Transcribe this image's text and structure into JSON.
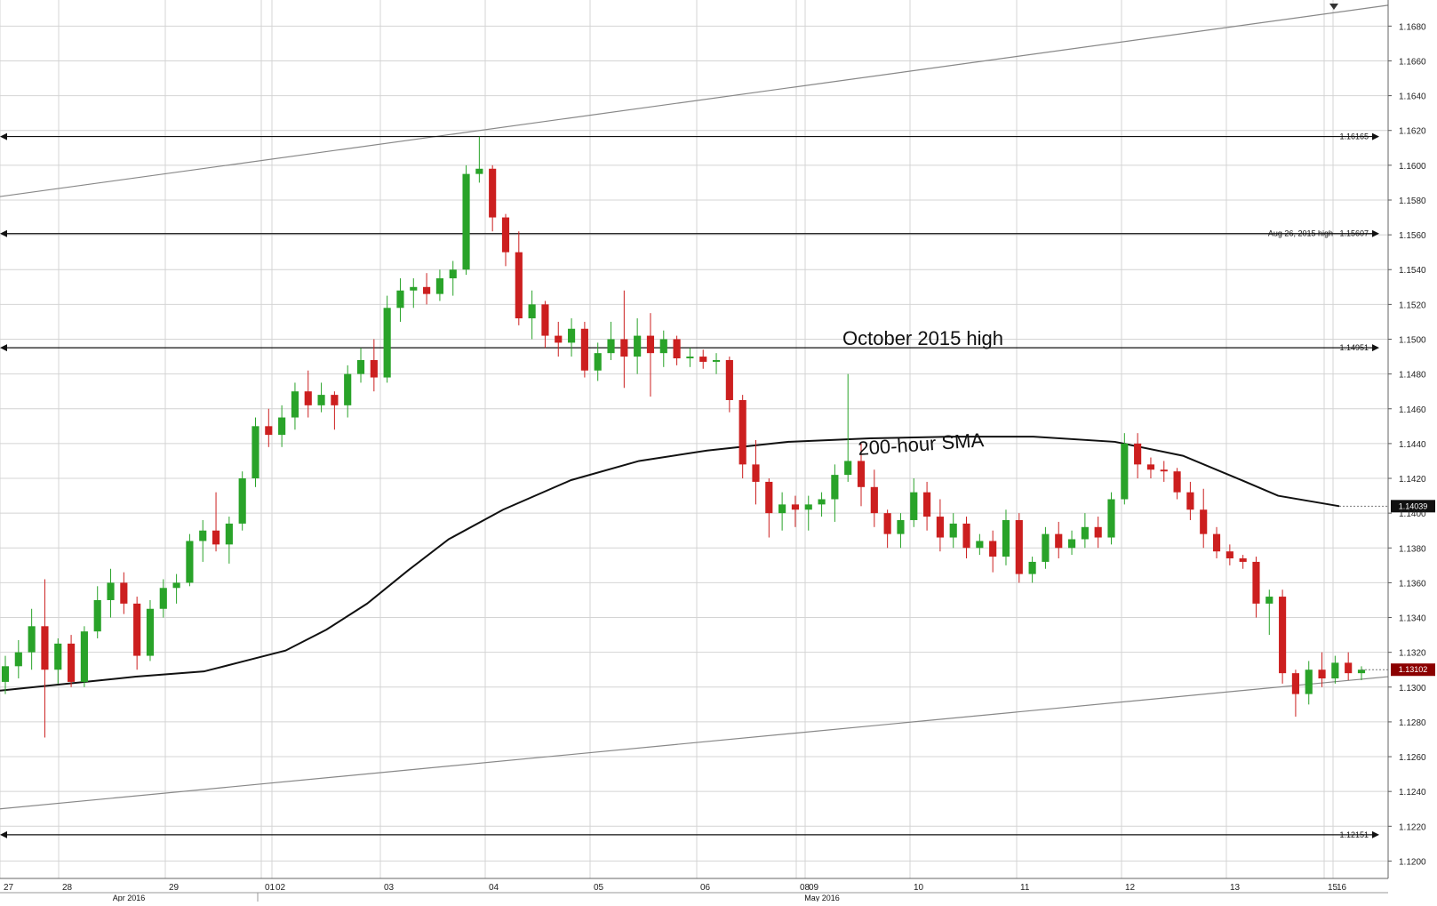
{
  "chart_data": {
    "type": "candlestick",
    "instrument_note": "",
    "ylim": [
      1.119,
      1.1695
    ],
    "y_ticks": [
      "1.1680",
      "1.1660",
      "1.1640",
      "1.1620",
      "1.1600",
      "1.1580",
      "1.1560",
      "1.1540",
      "1.1520",
      "1.1500",
      "1.1480",
      "1.1460",
      "1.1440",
      "1.1420",
      "1.1400",
      "1.1380",
      "1.1360",
      "1.1340",
      "1.1320",
      "1.1300",
      "1.1280",
      "1.1260",
      "1.1240",
      "1.1220",
      "1.1200"
    ],
    "x_date_labels": [
      "27",
      "28",
      "29",
      "01",
      "02",
      "03",
      "04",
      "05",
      "06",
      "08",
      "09",
      "10",
      "11",
      "12",
      "13",
      "15",
      "16"
    ],
    "x_month_labels": [
      "Apr 2016",
      "May 2016"
    ],
    "horizontal_levels": [
      {
        "label": "",
        "value_text": "1.16165",
        "value": 1.16165
      },
      {
        "label": "Aug 26, 2015 high",
        "value_text": "1.15607",
        "value": 1.15607
      },
      {
        "label": "October 2015 high",
        "value_text": "1.14951",
        "value": 1.14951
      },
      {
        "label": "",
        "value_text": "1.12151",
        "value": 1.12151
      }
    ],
    "trendlines": [
      {
        "from": [
          0,
          1.1582
        ],
        "to": [
          1.0,
          1.1692
        ]
      },
      {
        "from": [
          0,
          1.123
        ],
        "to": [
          1.0,
          1.1306
        ]
      }
    ],
    "sma_label": "200-hour SMA",
    "sma_value_text": "1.14039",
    "last_price_text": "1.13102",
    "sma_points": [
      [
        0,
        1.1298
      ],
      [
        0.05,
        1.1302
      ],
      [
        0.1,
        1.1306
      ],
      [
        0.15,
        1.1309
      ],
      [
        0.18,
        1.1315
      ],
      [
        0.21,
        1.1321
      ],
      [
        0.24,
        1.1333
      ],
      [
        0.27,
        1.1348
      ],
      [
        0.3,
        1.1367
      ],
      [
        0.33,
        1.1385
      ],
      [
        0.37,
        1.1402
      ],
      [
        0.42,
        1.1419
      ],
      [
        0.47,
        1.143
      ],
      [
        0.52,
        1.1436
      ],
      [
        0.58,
        1.1441
      ],
      [
        0.64,
        1.1443
      ],
      [
        0.7,
        1.1444
      ],
      [
        0.76,
        1.1444
      ],
      [
        0.82,
        1.1441
      ],
      [
        0.87,
        1.1433
      ],
      [
        0.91,
        1.142
      ],
      [
        0.94,
        1.141
      ],
      [
        0.985,
        1.1404
      ]
    ],
    "candles_ohlc": [
      [
        1.1303,
        1.1318,
        1.1296,
        1.1312
      ],
      [
        1.1312,
        1.1327,
        1.1305,
        1.132
      ],
      [
        1.132,
        1.1345,
        1.131,
        1.1335
      ],
      [
        1.1335,
        1.1362,
        1.1271,
        1.131
      ],
      [
        1.131,
        1.1328,
        1.1302,
        1.1325
      ],
      [
        1.1325,
        1.133,
        1.13,
        1.1303
      ],
      [
        1.1303,
        1.1335,
        1.13,
        1.1332
      ],
      [
        1.1332,
        1.1358,
        1.1328,
        1.135
      ],
      [
        1.135,
        1.1368,
        1.134,
        1.136
      ],
      [
        1.136,
        1.1366,
        1.1342,
        1.1348
      ],
      [
        1.1348,
        1.1352,
        1.131,
        1.1318
      ],
      [
        1.1318,
        1.135,
        1.1315,
        1.1345
      ],
      [
        1.1345,
        1.1362,
        1.134,
        1.1357
      ],
      [
        1.1357,
        1.1365,
        1.1348,
        1.136
      ],
      [
        1.136,
        1.1388,
        1.1358,
        1.1384
      ],
      [
        1.1384,
        1.1396,
        1.1372,
        1.139
      ],
      [
        1.139,
        1.1412,
        1.1378,
        1.1382
      ],
      [
        1.1382,
        1.1398,
        1.1371,
        1.1394
      ],
      [
        1.1394,
        1.1424,
        1.139,
        1.142
      ],
      [
        1.142,
        1.1455,
        1.1415,
        1.145
      ],
      [
        1.145,
        1.146,
        1.1438,
        1.1445
      ],
      [
        1.1445,
        1.1462,
        1.1438,
        1.1455
      ],
      [
        1.1455,
        1.1475,
        1.1448,
        1.147
      ],
      [
        1.147,
        1.1482,
        1.1455,
        1.1462
      ],
      [
        1.1462,
        1.1475,
        1.1458,
        1.1468
      ],
      [
        1.1468,
        1.147,
        1.1448,
        1.1462
      ],
      [
        1.1462,
        1.1485,
        1.1455,
        1.148
      ],
      [
        1.148,
        1.1495,
        1.1475,
        1.1488
      ],
      [
        1.1488,
        1.15,
        1.147,
        1.1478
      ],
      [
        1.1478,
        1.1525,
        1.1475,
        1.1518
      ],
      [
        1.1518,
        1.1535,
        1.151,
        1.1528
      ],
      [
        1.1528,
        1.1535,
        1.1518,
        1.153
      ],
      [
        1.153,
        1.1538,
        1.152,
        1.1526
      ],
      [
        1.1526,
        1.154,
        1.1522,
        1.1535
      ],
      [
        1.1535,
        1.1545,
        1.1525,
        1.154
      ],
      [
        1.154,
        1.16,
        1.1537,
        1.1595
      ],
      [
        1.1595,
        1.16165,
        1.159,
        1.1598
      ],
      [
        1.1598,
        1.16,
        1.1562,
        1.157
      ],
      [
        1.157,
        1.1572,
        1.1542,
        1.155
      ],
      [
        1.155,
        1.1562,
        1.1508,
        1.1512
      ],
      [
        1.1512,
        1.1528,
        1.15,
        1.152
      ],
      [
        1.152,
        1.1522,
        1.1495,
        1.1502
      ],
      [
        1.1502,
        1.151,
        1.149,
        1.1498
      ],
      [
        1.1498,
        1.1512,
        1.149,
        1.1506
      ],
      [
        1.1506,
        1.151,
        1.1478,
        1.1482
      ],
      [
        1.1482,
        1.1498,
        1.1476,
        1.1492
      ],
      [
        1.1492,
        1.151,
        1.1488,
        1.15
      ],
      [
        1.15,
        1.1528,
        1.1472,
        1.149
      ],
      [
        1.149,
        1.1512,
        1.148,
        1.1502
      ],
      [
        1.1502,
        1.1515,
        1.1467,
        1.1492
      ],
      [
        1.1492,
        1.1505,
        1.1484,
        1.15
      ],
      [
        1.15,
        1.1502,
        1.1485,
        1.1489
      ],
      [
        1.1489,
        1.1495,
        1.1484,
        1.149
      ],
      [
        1.149,
        1.1494,
        1.1483,
        1.1487
      ],
      [
        1.1487,
        1.1492,
        1.148,
        1.1488
      ],
      [
        1.1488,
        1.149,
        1.1458,
        1.1465
      ],
      [
        1.1465,
        1.1468,
        1.142,
        1.1428
      ],
      [
        1.1428,
        1.1442,
        1.1405,
        1.1418
      ],
      [
        1.1418,
        1.142,
        1.1386,
        1.14
      ],
      [
        1.14,
        1.1412,
        1.139,
        1.1405
      ],
      [
        1.1405,
        1.141,
        1.1392,
        1.1402
      ],
      [
        1.1402,
        1.141,
        1.139,
        1.1405
      ],
      [
        1.1405,
        1.1412,
        1.1398,
        1.1408
      ],
      [
        1.1408,
        1.1428,
        1.1395,
        1.1422
      ],
      [
        1.1422,
        1.148,
        1.1418,
        1.143
      ],
      [
        1.143,
        1.144,
        1.1404,
        1.1415
      ],
      [
        1.1415,
        1.1425,
        1.1392,
        1.14
      ],
      [
        1.14,
        1.1402,
        1.138,
        1.1388
      ],
      [
        1.1388,
        1.14,
        1.138,
        1.1396
      ],
      [
        1.1396,
        1.142,
        1.1392,
        1.1412
      ],
      [
        1.1412,
        1.1418,
        1.139,
        1.1398
      ],
      [
        1.1398,
        1.1408,
        1.1378,
        1.1386
      ],
      [
        1.1386,
        1.14,
        1.138,
        1.1394
      ],
      [
        1.1394,
        1.1398,
        1.1374,
        1.138
      ],
      [
        1.138,
        1.1388,
        1.1376,
        1.1384
      ],
      [
        1.1384,
        1.139,
        1.1366,
        1.1375
      ],
      [
        1.1375,
        1.1402,
        1.137,
        1.1396
      ],
      [
        1.1396,
        1.14,
        1.136,
        1.1365
      ],
      [
        1.1365,
        1.1375,
        1.136,
        1.1372
      ],
      [
        1.1372,
        1.1392,
        1.1368,
        1.1388
      ],
      [
        1.1388,
        1.1395,
        1.1374,
        1.138
      ],
      [
        1.138,
        1.139,
        1.1376,
        1.1385
      ],
      [
        1.1385,
        1.14,
        1.138,
        1.1392
      ],
      [
        1.1392,
        1.1398,
        1.138,
        1.1386
      ],
      [
        1.1386,
        1.1412,
        1.1382,
        1.1408
      ],
      [
        1.1408,
        1.1446,
        1.1405,
        1.144
      ],
      [
        1.144,
        1.1446,
        1.142,
        1.1428
      ],
      [
        1.1428,
        1.1432,
        1.142,
        1.1425
      ],
      [
        1.1425,
        1.143,
        1.1418,
        1.1424
      ],
      [
        1.1424,
        1.1426,
        1.1408,
        1.1412
      ],
      [
        1.1412,
        1.1418,
        1.1396,
        1.1402
      ],
      [
        1.1402,
        1.1414,
        1.138,
        1.1388
      ],
      [
        1.1388,
        1.1392,
        1.1374,
        1.1378
      ],
      [
        1.1378,
        1.1382,
        1.137,
        1.1374
      ],
      [
        1.1374,
        1.1376,
        1.1368,
        1.1372
      ],
      [
        1.1372,
        1.1375,
        1.134,
        1.1348
      ],
      [
        1.1348,
        1.1356,
        1.133,
        1.1352
      ],
      [
        1.1352,
        1.1356,
        1.1302,
        1.1308
      ],
      [
        1.1308,
        1.131,
        1.1283,
        1.1296
      ],
      [
        1.1296,
        1.1315,
        1.129,
        1.131
      ],
      [
        1.131,
        1.132,
        1.13,
        1.1305
      ],
      [
        1.1305,
        1.1318,
        1.1302,
        1.1314
      ],
      [
        1.1314,
        1.132,
        1.1304,
        1.1308
      ],
      [
        1.1308,
        1.1312,
        1.1304,
        1.131
      ]
    ]
  }
}
